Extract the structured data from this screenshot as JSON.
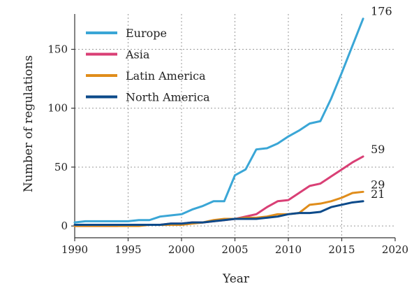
{
  "chart_data": {
    "type": "line",
    "title": "",
    "xlabel": "Year",
    "ylabel": "Number of regulations",
    "xlim": [
      1990,
      2020
    ],
    "ylim": [
      -10,
      180
    ],
    "x_ticks": [
      1990,
      1995,
      2000,
      2005,
      2010,
      2015,
      2020
    ],
    "y_ticks": [
      0,
      50,
      100,
      150
    ],
    "grid": true,
    "legend_position": "top-left",
    "x": [
      1990,
      1991,
      1992,
      1993,
      1994,
      1995,
      1996,
      1997,
      1998,
      1999,
      2000,
      2001,
      2002,
      2003,
      2004,
      2005,
      2006,
      2007,
      2008,
      2009,
      2010,
      2011,
      2012,
      2013,
      2014,
      2015,
      2016,
      2017
    ],
    "series": [
      {
        "name": "Europe",
        "color": "#3aa6d6",
        "end_label": "176",
        "values": [
          3,
          4,
          4,
          4,
          4,
          4,
          5,
          5,
          8,
          9,
          10,
          14,
          17,
          21,
          21,
          43,
          48,
          65,
          66,
          70,
          76,
          81,
          87,
          89,
          108,
          130,
          153,
          176
        ]
      },
      {
        "name": "Asia",
        "color": "#d93f75",
        "end_label": "59",
        "values": [
          0,
          0,
          0,
          0,
          0,
          1,
          1,
          1,
          1,
          2,
          2,
          3,
          3,
          4,
          5,
          6,
          8,
          10,
          16,
          21,
          22,
          28,
          34,
          36,
          42,
          48,
          54,
          59
        ]
      },
      {
        "name": "Latin America",
        "color": "#e08d1b",
        "end_label": "29",
        "values": [
          0,
          0,
          0,
          0,
          0,
          0,
          0,
          1,
          1,
          1,
          1,
          2,
          3,
          5,
          6,
          6,
          7,
          7,
          8,
          10,
          10,
          11,
          18,
          19,
          21,
          24,
          28,
          29
        ]
      },
      {
        "name": "North America",
        "color": "#0c4a8a",
        "end_label": "21",
        "values": [
          1,
          1,
          1,
          1,
          1,
          1,
          1,
          1,
          1,
          2,
          2,
          3,
          3,
          4,
          5,
          6,
          6,
          6,
          7,
          8,
          10,
          11,
          11,
          12,
          16,
          18,
          20,
          21
        ]
      }
    ]
  }
}
